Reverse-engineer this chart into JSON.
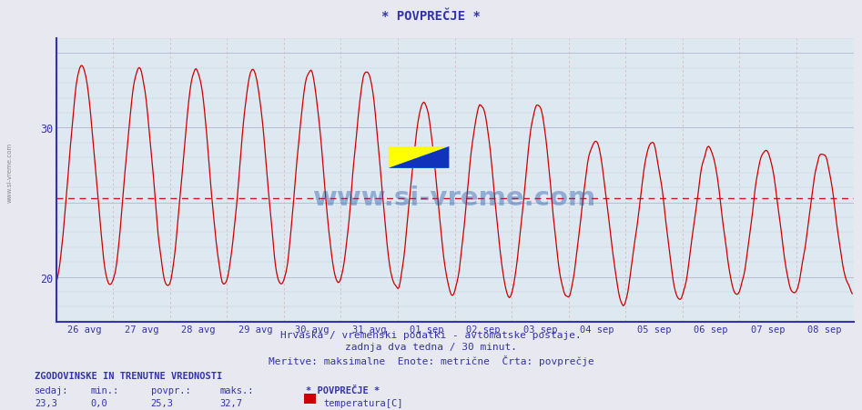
{
  "title": "* POVPREČJE *",
  "subtitle1": "Hrvaška / vremenski podatki - avtomatske postaje.",
  "subtitle2": "zadnja dva tedna / 30 minut.",
  "subtitle3": "Meritve: maksimalne  Enote: metrične  Črta: povprečje",
  "xlabel_dates": [
    "26 avg",
    "27 avg",
    "28 avg",
    "29 avg",
    "30 avg",
    "31 avg",
    "01 sep",
    "02 sep",
    "03 sep",
    "04 sep",
    "05 sep",
    "06 sep",
    "07 sep",
    "08 sep"
  ],
  "ylabel_ticks": [
    20,
    30
  ],
  "ylim": [
    17,
    36
  ],
  "xlim": [
    0,
    672
  ],
  "avg_line": 25.3,
  "background_color": "#e8e8f0",
  "plot_bg_color": "#dde8f0",
  "grid_color_h": "#aaaacc",
  "grid_color_v": "#ddaaaa",
  "line_color": "#cc0000",
  "avg_line_color": "#cc0000",
  "axis_color": "#3333aa",
  "text_color": "#3333aa",
  "watermark_text": "www.si-vreme.com",
  "watermark_color": "#2255aa",
  "legend_label": "ZGODOVINSKE IN TRENUTNE VREDNOSTI",
  "stat_labels": [
    "sedaj:",
    "min.:",
    "povpr.:",
    "maks.:"
  ],
  "stat_values": [
    "23,3",
    "0,0",
    "25,3",
    "32,7"
  ],
  "series_name": "* POVPREČJE *",
  "series_unit": "temperatura[C]",
  "series_color": "#cc0000",
  "left_label": "www.si-vreme.com",
  "num_points": 672,
  "days": 14,
  "points_per_day": 48
}
